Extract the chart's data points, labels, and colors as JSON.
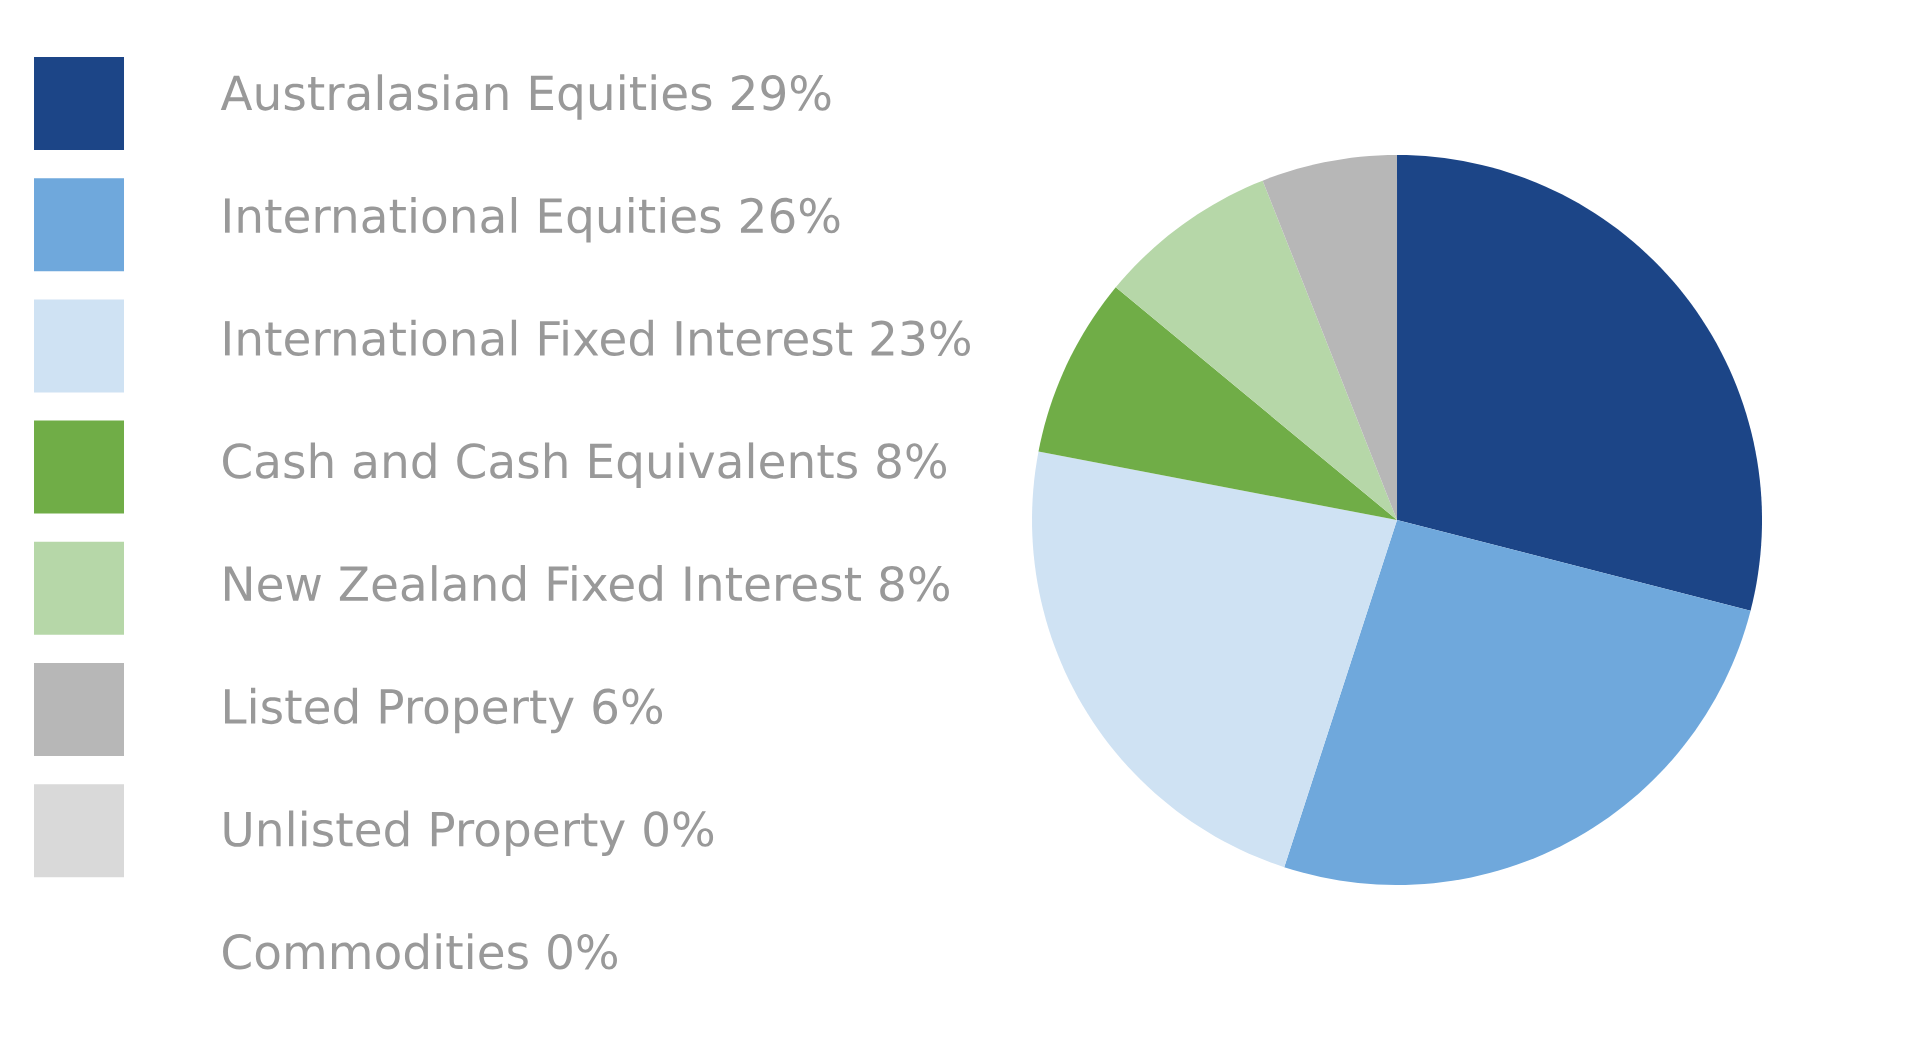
{
  "chart_data": {
    "type": "pie",
    "categories": [
      "Australasian Equities",
      "International Equities",
      "International Fixed Interest",
      "Cash and Cash Equivalents",
      "New Zealand Fixed Interest",
      "Listed Property",
      "Unlisted Property",
      "Commodities"
    ],
    "values": [
      29,
      26,
      23,
      8,
      8,
      6,
      0,
      0
    ],
    "value_labels": [
      "29%",
      "26%",
      "23%",
      "8%",
      "8%",
      "6%",
      "0%",
      "0%"
    ],
    "colors": [
      "#1c4587",
      "#6fa8dc",
      "#cfe2f3",
      "#70ad47",
      "#b6d7a8",
      "#b7b7b7",
      "#d9d9d9",
      null
    ],
    "legend": "left"
  }
}
